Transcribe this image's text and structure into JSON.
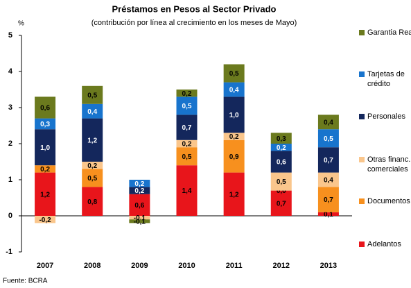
{
  "chart_data": {
    "type": "stacked_bar",
    "title": "Préstamos en Pesos al Sector Privado",
    "subtitle": "(contribución por línea al crecimiento en los meses de Mayo)",
    "y_unit": "%",
    "source": "Fuente: BCRA",
    "categories": [
      "2007",
      "2008",
      "2009",
      "2010",
      "2011",
      "2012",
      "2013"
    ],
    "ylim": [
      -1,
      5
    ],
    "yticks": [
      -1,
      0,
      1,
      2,
      3,
      4,
      5
    ],
    "series": [
      {
        "name": "Adelantos",
        "color": "#e8151b",
        "values": [
          1.2,
          0.8,
          0.6,
          1.4,
          1.2,
          0.7,
          0.1
        ],
        "value_labels": [
          "1,2",
          "0,8",
          "0,6",
          "1,4",
          "1,2",
          "0,7",
          "0,1"
        ]
      },
      {
        "name": "Documentos",
        "color": "#f7901e",
        "values": [
          0.2,
          0.5,
          0,
          0.5,
          0.9,
          0,
          0.7
        ],
        "value_labels": [
          "0,2",
          "0,5",
          null,
          "0,5",
          "0,9",
          "0,0",
          "0,7"
        ]
      },
      {
        "name": "Otras financ. comerciales",
        "color": "#fac68c",
        "values": [
          -0.2,
          0.2,
          -0.1,
          0.2,
          0.2,
          0.5,
          0.4
        ],
        "value_labels": [
          "-0,2",
          "0,2",
          "-0,1",
          "0,2",
          "0,2",
          "0,5",
          "0,4"
        ]
      },
      {
        "name": "Personales",
        "color": "#14275c",
        "values": [
          1.0,
          1.2,
          0.2,
          0.7,
          1.0,
          0.6,
          0.7
        ],
        "value_labels": [
          "1,0",
          "1,2",
          "0,2",
          "0,7",
          "1,0",
          "0,6",
          "0,7"
        ]
      },
      {
        "name": "Tarjetas de crédito",
        "color": "#1874cd",
        "values": [
          0.3,
          0.4,
          0.2,
          0.5,
          0.4,
          0.2,
          0.5
        ],
        "value_labels": [
          "0,3",
          "0,4",
          "0,2",
          "0,5",
          "0,4",
          "0,2",
          "0,5"
        ]
      },
      {
        "name": "Garantia Real",
        "color": "#6b7a1e",
        "values": [
          0.6,
          0.5,
          -0.1,
          0.2,
          0.5,
          0.3,
          0.4
        ],
        "value_labels": [
          "0,6",
          "0,5",
          "-0,1",
          "0,2",
          "0,5",
          "0,3",
          "0,4"
        ]
      }
    ]
  }
}
